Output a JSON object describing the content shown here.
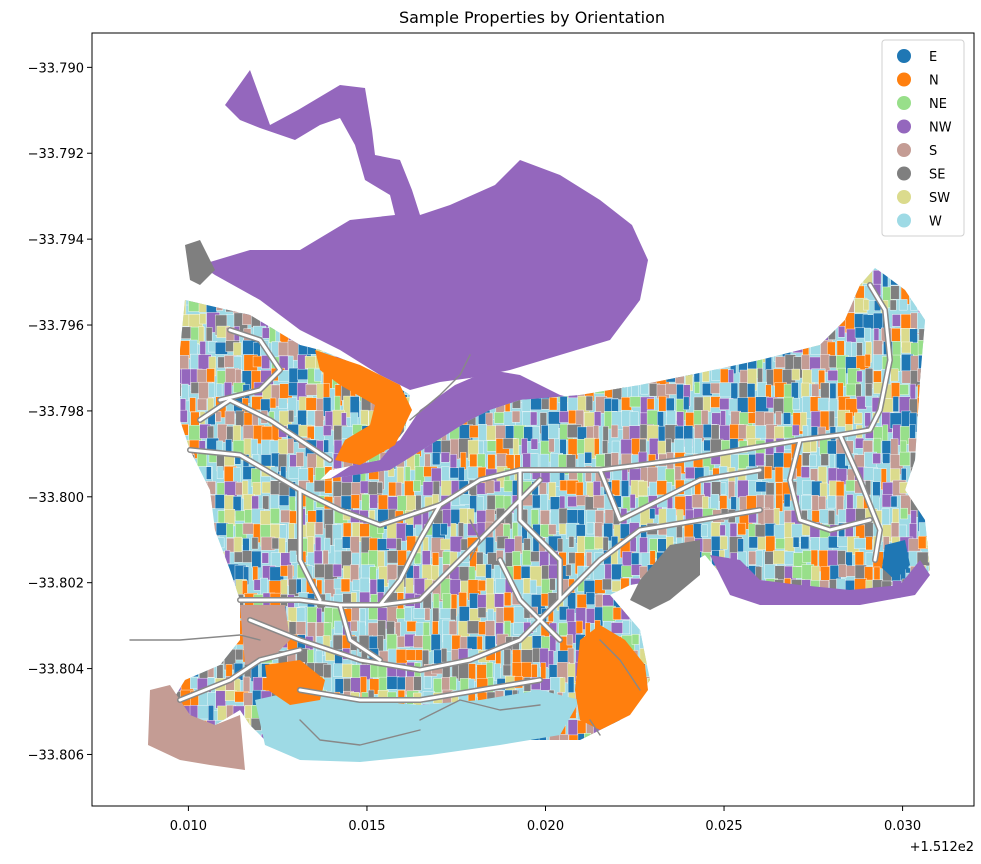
{
  "chart_data": {
    "type": "map",
    "title": "Sample Properties by Orientation",
    "x_offset_label": "+1.512e2",
    "xlim": [
      0.0073,
      0.032
    ],
    "ylim": [
      -33.8072,
      -33.7892
    ],
    "x_ticks": [
      "0.010",
      "0.015",
      "0.020",
      "0.025",
      "0.030"
    ],
    "x_tick_values": [
      0.01,
      0.015,
      0.02,
      0.025,
      0.03
    ],
    "y_ticks": [
      "−33.790",
      "−33.792",
      "−33.794",
      "−33.796",
      "−33.798",
      "−33.800",
      "−33.802",
      "−33.804",
      "−33.806"
    ],
    "y_tick_values": [
      -33.79,
      -33.792,
      -33.794,
      -33.796,
      -33.798,
      -33.8,
      -33.802,
      -33.804,
      -33.806
    ],
    "legend_position": "top-right",
    "legend": [
      {
        "name": "E",
        "color": "#1f77b4"
      },
      {
        "name": "N",
        "color": "#ff7f0e"
      },
      {
        "name": "NE",
        "color": "#98df8a"
      },
      {
        "name": "NW",
        "color": "#9467bd"
      },
      {
        "name": "S",
        "color": "#c49c94"
      },
      {
        "name": "SE",
        "color": "#7f7f7f"
      },
      {
        "name": "SW",
        "color": "#dbdb8d"
      },
      {
        "name": "W",
        "color": "#9edae5"
      }
    ],
    "road_color": "#888888"
  }
}
